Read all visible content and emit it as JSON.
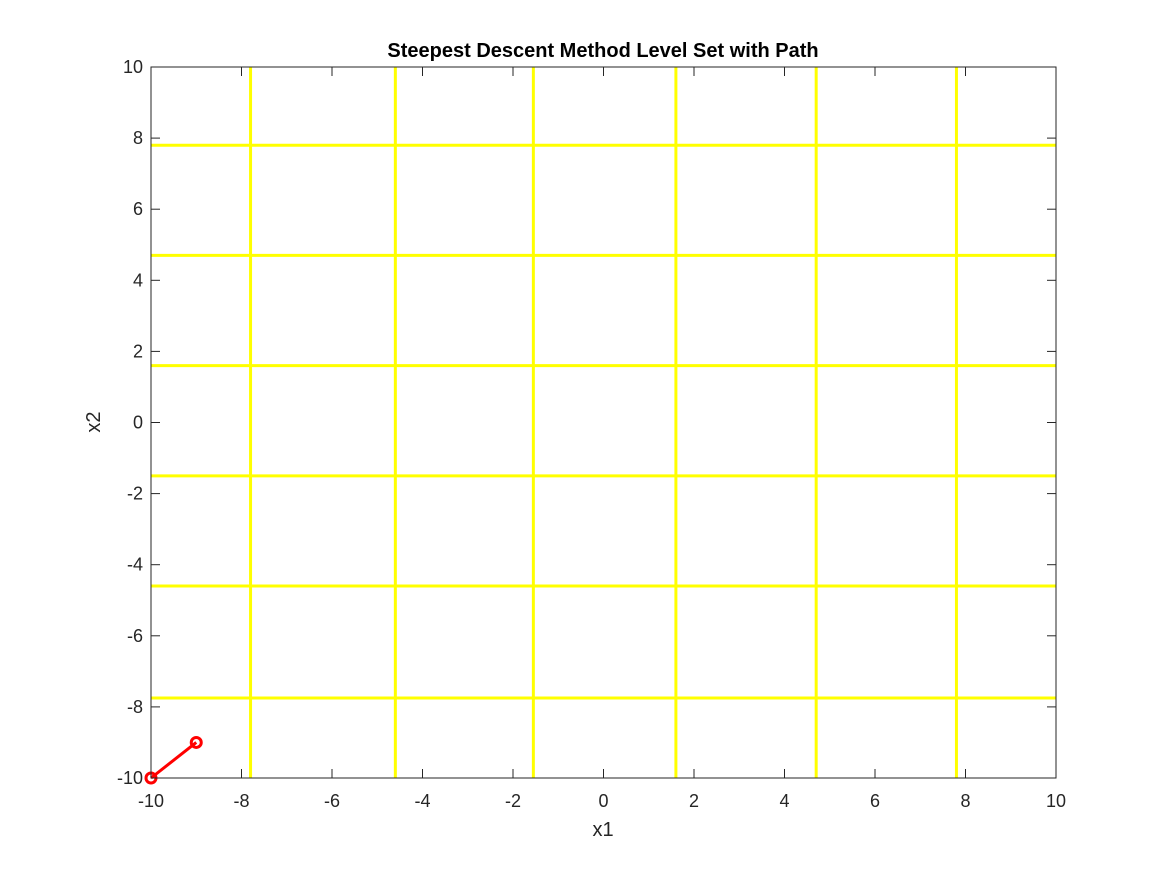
{
  "chart_data": {
    "type": "line",
    "title": "Steepest Descent Method Level Set with Path",
    "xlabel": "x1",
    "ylabel": "x2",
    "xlim": [
      -10,
      10
    ],
    "ylim": [
      -10,
      10
    ],
    "x_ticks": [
      -10,
      -8,
      -6,
      -4,
      -2,
      0,
      2,
      4,
      6,
      8,
      10
    ],
    "y_ticks": [
      -10,
      -8,
      -6,
      -4,
      -2,
      0,
      2,
      4,
      6,
      8,
      10
    ],
    "x_tick_labels": [
      "-10",
      "-8",
      "-6",
      "-4",
      "-2",
      "0",
      "2",
      "4",
      "6",
      "8",
      "10"
    ],
    "y_tick_labels": [
      "-10",
      "-8",
      "-6",
      "-4",
      "-2",
      "0",
      "2",
      "4",
      "6",
      "8",
      "10"
    ],
    "grid": false,
    "colors": {
      "level_set": "#ffff00",
      "path": "#ff0000",
      "axes": "#262626",
      "background": "#ffffff"
    },
    "level_set": {
      "vertical_x": [
        -7.8,
        -4.6,
        -1.55,
        1.6,
        4.7,
        7.8
      ],
      "horizontal_y": [
        7.8,
        4.7,
        1.6,
        -1.5,
        -4.6,
        -7.75
      ]
    },
    "series": [
      {
        "marker": "circle",
        "x": [
          -10,
          -9
        ],
        "y": [
          -10,
          -9
        ]
      }
    ]
  }
}
